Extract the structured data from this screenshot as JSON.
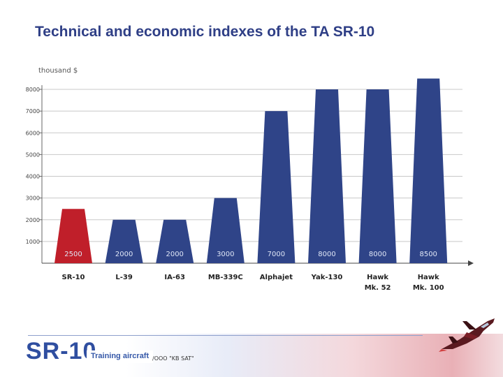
{
  "title": "Technical and economic indexes of the TA SR-10",
  "unit_label": "thousand $",
  "colors": {
    "highlight": "#c01f2a",
    "bar": "#2f4488",
    "title": "#2f3f86",
    "grid": "#c8c8c8"
  },
  "chart_data": {
    "type": "bar",
    "title": "Technical and economic indexes of the TA SR-10",
    "ylabel": "thousand $",
    "xlabel": "",
    "ylim": [
      0,
      8000
    ],
    "yticks": [
      1000,
      2000,
      3000,
      4000,
      5000,
      6000,
      7000,
      8000
    ],
    "grid": true,
    "categories": [
      [
        "SR-10"
      ],
      [
        "L-39"
      ],
      [
        "IA-63"
      ],
      [
        "MB-339C"
      ],
      [
        "Alphajet"
      ],
      [
        "Yak-130"
      ],
      [
        "Hawk",
        "Mk. 52"
      ],
      [
        "Hawk",
        "Mk. 100"
      ]
    ],
    "values": [
      2500,
      2000,
      2000,
      3000,
      7000,
      8000,
      8000,
      8500
    ],
    "value_labels": [
      "2500",
      "2000",
      "2000",
      "3000",
      "7000",
      "8000",
      "8000",
      "8500"
    ],
    "highlight_index": 0
  },
  "footer": {
    "logo": "SR-10",
    "logo_subtitle": "Training aircraft",
    "company": "/ООО \"KB SAT\""
  },
  "icons": {
    "aircraft": "jet-aircraft-icon"
  }
}
